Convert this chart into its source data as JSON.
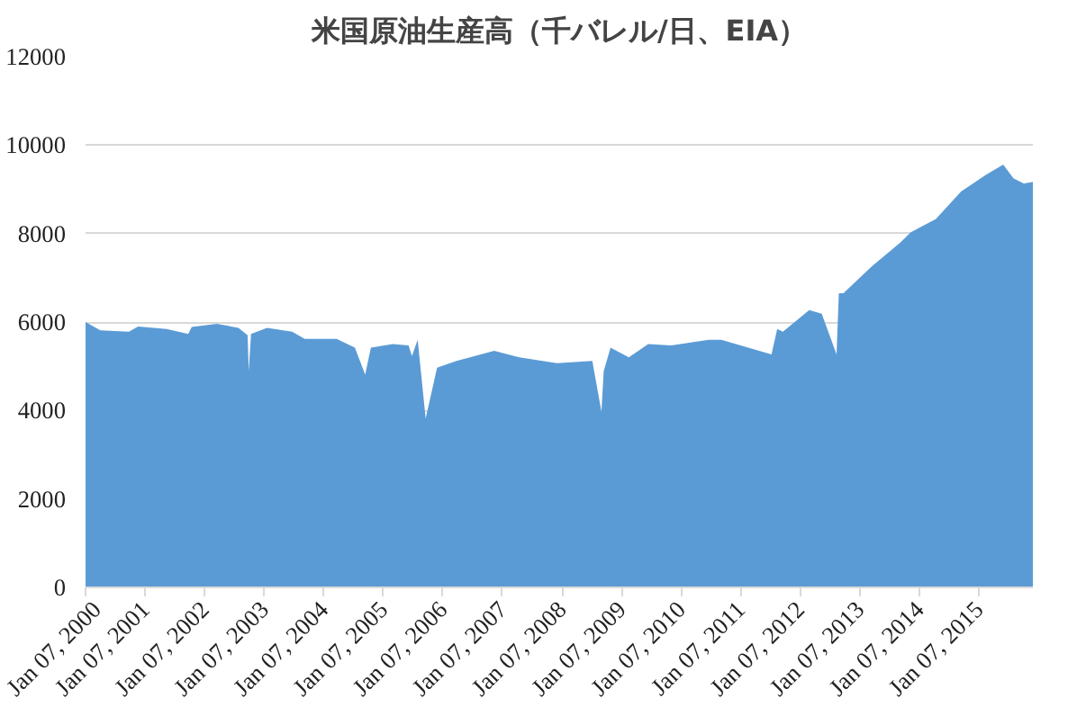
{
  "chart_data": {
    "type": "area",
    "title": "米国原油生産高（千バレル/日、EIA）",
    "x": [
      "2000-01-07",
      "2000-04-07",
      "2000-09-29",
      "2000-11-24",
      "2001-05-18",
      "2001-09-28",
      "2001-10-19",
      "2002-03-22",
      "2002-08-02",
      "2002-09-27",
      "2002-10-04",
      "2002-10-18",
      "2003-01-24",
      "2003-06-27",
      "2003-09-12",
      "2004-03-26",
      "2004-07-16",
      "2004-09-17",
      "2004-10-22",
      "2005-03-04",
      "2005-06-10",
      "2005-07-01",
      "2005-08-05",
      "2005-09-23",
      "2005-12-02",
      "2006-03-31",
      "2006-11-17",
      "2007-04-20",
      "2007-12-07",
      "2008-07-11",
      "2008-09-05",
      "2008-09-19",
      "2008-10-31",
      "2009-02-20",
      "2009-06-19",
      "2009-11-06",
      "2010-06-25",
      "2010-09-10",
      "2011-07-15",
      "2011-08-19",
      "2011-09-23",
      "2012-03-02",
      "2012-05-18",
      "2012-08-17",
      "2012-08-31",
      "2012-09-28",
      "2013-03-22",
      "2013-09-13",
      "2013-11-15",
      "2014-04-18",
      "2014-09-19",
      "2015-02-20",
      "2015-06-05",
      "2015-08-07",
      "2015-10-09",
      "2015-12-04"
    ],
    "values": [
      6000,
      5810,
      5780,
      5900,
      5840,
      5730,
      5890,
      5960,
      5870,
      5700,
      4890,
      5730,
      5870,
      5780,
      5620,
      5620,
      5420,
      4810,
      5420,
      5500,
      5470,
      5230,
      5600,
      3820,
      4970,
      5120,
      5350,
      5200,
      5070,
      5120,
      3970,
      4890,
      5420,
      5200,
      5500,
      5470,
      5600,
      5600,
      5270,
      5840,
      5780,
      6270,
      6190,
      5270,
      6650,
      6650,
      7260,
      7800,
      8030,
      8330,
      8950,
      9330,
      9560,
      9250,
      9130,
      9170
    ],
    "color": "#5b9bd5",
    "xlim": [
      "2000-01-07",
      "2015-12-04"
    ],
    "ylim": [
      0,
      12000
    ],
    "yticks": [
      0,
      2000,
      4000,
      6000,
      8000,
      10000,
      12000
    ],
    "xticks": [
      {
        "value": "2000-01-07",
        "label": "Jan 07, 2000"
      },
      {
        "value": "2001-01-07",
        "label": "Jan 07, 2001"
      },
      {
        "value": "2002-01-07",
        "label": "Jan 07, 2002"
      },
      {
        "value": "2003-01-07",
        "label": "Jan 07, 2003"
      },
      {
        "value": "2004-01-07",
        "label": "Jan 07, 2004"
      },
      {
        "value": "2005-01-07",
        "label": "Jan 07, 2005"
      },
      {
        "value": "2006-01-07",
        "label": "Jan 07, 2006"
      },
      {
        "value": "2007-01-07",
        "label": "Jan 07, 2007"
      },
      {
        "value": "2008-01-07",
        "label": "Jan 07, 2008"
      },
      {
        "value": "2009-01-07",
        "label": "Jan 07, 2009"
      },
      {
        "value": "2010-01-07",
        "label": "Jan 07, 2010"
      },
      {
        "value": "2011-01-07",
        "label": "Jan 07, 2011"
      },
      {
        "value": "2012-01-07",
        "label": "Jan 07, 2012"
      },
      {
        "value": "2013-01-07",
        "label": "Jan 07, 2013"
      },
      {
        "value": "2014-01-07",
        "label": "Jan 07, 2014"
      },
      {
        "value": "2015-01-07",
        "label": "Jan 07, 2015"
      }
    ],
    "grid": "y"
  }
}
